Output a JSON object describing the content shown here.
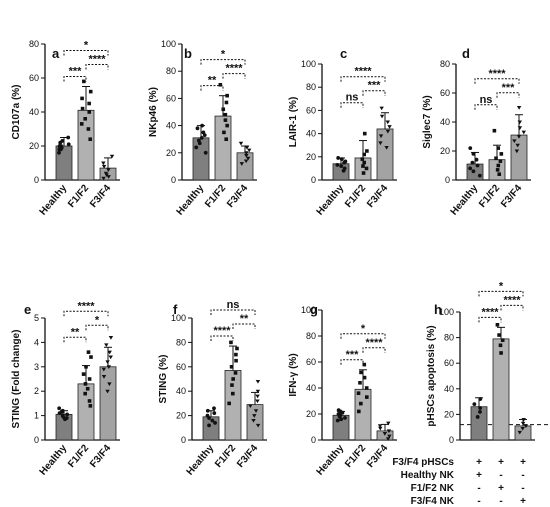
{
  "figure_colors": {
    "bar_fills": [
      "#7f7f7f",
      "#b1b1b1",
      "#a3a3a3"
    ],
    "stroke": "#222222",
    "point": "#111111"
  },
  "chart_data": [
    {
      "type": "bar",
      "panel": "a",
      "ylabel": "CD107a (%)",
      "ylim": [
        0,
        80
      ],
      "yticks": [
        0,
        20,
        40,
        60,
        80
      ],
      "categories": [
        "Healthy",
        "F1/F2",
        "F3/F4"
      ],
      "values": [
        20,
        41,
        7
      ],
      "errors": [
        5,
        14,
        6
      ],
      "points": [
        [
          16,
          18,
          18,
          19,
          20,
          20,
          21,
          22,
          23,
          25
        ],
        [
          24,
          30,
          33,
          36,
          40,
          42,
          45,
          48,
          52,
          58
        ],
        [
          1,
          2,
          3,
          4,
          6,
          8,
          10,
          14
        ]
      ],
      "comparisons": [
        {
          "from": 0,
          "to": 1,
          "label": "***"
        },
        {
          "from": 1,
          "to": 2,
          "label": "****"
        },
        {
          "from": 0,
          "to": 2,
          "label": "*"
        }
      ]
    },
    {
      "type": "bar",
      "panel": "b",
      "ylabel": "NKp46 (%)",
      "ylim": [
        0,
        100
      ],
      "yticks": [
        0,
        20,
        40,
        60,
        80,
        100
      ],
      "categories": [
        "Healthy",
        "F1/F2",
        "F3/F4"
      ],
      "values": [
        31,
        47,
        20
      ],
      "errors": [
        9,
        15,
        5
      ],
      "points": [
        [
          20,
          24,
          27,
          29,
          31,
          33,
          35,
          38,
          40
        ],
        [
          30,
          35,
          40,
          44,
          48,
          52,
          57,
          62,
          70
        ],
        [
          12,
          14,
          16,
          18,
          20,
          22,
          24,
          27
        ]
      ],
      "comparisons": [
        {
          "from": 0,
          "to": 1,
          "label": "**"
        },
        {
          "from": 1,
          "to": 2,
          "label": "****"
        },
        {
          "from": 0,
          "to": 2,
          "label": "*"
        }
      ]
    },
    {
      "type": "bar",
      "panel": "c",
      "ylabel": "LAIR-1 (%)",
      "ylim": [
        0,
        100
      ],
      "yticks": [
        0,
        20,
        40,
        60,
        80,
        100
      ],
      "categories": [
        "Healthy",
        "F1/F2",
        "F3/F4"
      ],
      "values": [
        14,
        19,
        44
      ],
      "errors": [
        5,
        15,
        14
      ],
      "points": [
        [
          8,
          10,
          12,
          13,
          15,
          16,
          18,
          19
        ],
        [
          6,
          10,
          12,
          15,
          18,
          22,
          25,
          40
        ],
        [
          28,
          32,
          38,
          42,
          46,
          50,
          55,
          62
        ]
      ],
      "comparisons": [
        {
          "from": 0,
          "to": 1,
          "label": "ns"
        },
        {
          "from": 1,
          "to": 2,
          "label": "***"
        },
        {
          "from": 0,
          "to": 2,
          "label": "****"
        }
      ]
    },
    {
      "type": "bar",
      "panel": "d",
      "ylabel": "Siglec7 (%)",
      "ylim": [
        0,
        80
      ],
      "yticks": [
        0,
        20,
        40,
        60,
        80
      ],
      "categories": [
        "Healthy",
        "F1/F2",
        "F3/F4"
      ],
      "values": [
        11,
        14,
        31
      ],
      "errors": [
        8,
        10,
        14
      ],
      "points": [
        [
          3,
          6,
          8,
          10,
          12,
          14,
          18,
          22
        ],
        [
          4,
          7,
          10,
          13,
          15,
          18,
          22,
          34
        ],
        [
          20,
          24,
          27,
          30,
          33,
          36,
          40,
          50
        ]
      ],
      "comparisons": [
        {
          "from": 0,
          "to": 1,
          "label": "ns"
        },
        {
          "from": 1,
          "to": 2,
          "label": "***"
        },
        {
          "from": 0,
          "to": 2,
          "label": "****"
        }
      ]
    },
    {
      "type": "bar",
      "panel": "e",
      "ylabel": "STING (Fold change)",
      "ylim": [
        0,
        5
      ],
      "yticks": [
        0,
        1,
        2,
        3,
        4,
        5
      ],
      "categories": [
        "Healthy",
        "F1/F2",
        "F3/F4"
      ],
      "values": [
        1.05,
        2.3,
        3.0
      ],
      "errors": [
        0.15,
        0.75,
        0.8
      ],
      "points": [
        [
          0.85,
          0.9,
          0.95,
          1.0,
          1.05,
          1.1,
          1.15,
          1.2,
          1.3
        ],
        [
          1.4,
          1.6,
          1.9,
          2.1,
          2.3,
          2.5,
          2.7,
          3.0,
          3.4,
          3.6
        ],
        [
          2.0,
          2.3,
          2.6,
          2.9,
          3.0,
          3.2,
          3.4,
          3.6,
          3.9,
          4.2
        ]
      ],
      "comparisons": [
        {
          "from": 0,
          "to": 1,
          "label": "**"
        },
        {
          "from": 1,
          "to": 2,
          "label": "*"
        },
        {
          "from": 0,
          "to": 2,
          "label": "****"
        }
      ]
    },
    {
      "type": "bar",
      "panel": "f",
      "ylabel": "STING (%)",
      "ylim": [
        0,
        100
      ],
      "yticks": [
        0,
        20,
        40,
        60,
        80,
        100
      ],
      "categories": [
        "Healthy",
        "F1/F2",
        "F3/F4"
      ],
      "values": [
        19,
        57,
        29
      ],
      "errors": [
        5,
        20,
        10
      ],
      "points": [
        [
          12,
          14,
          16,
          18,
          20,
          22,
          24,
          26
        ],
        [
          30,
          38,
          45,
          50,
          55,
          60,
          65,
          70,
          75,
          80
        ],
        [
          12,
          16,
          20,
          24,
          28,
          32,
          36,
          40,
          48
        ]
      ],
      "comparisons": [
        {
          "from": 0,
          "to": 1,
          "label": "****"
        },
        {
          "from": 1,
          "to": 2,
          "label": "**"
        },
        {
          "from": 0,
          "to": 2,
          "label": "ns"
        }
      ]
    },
    {
      "type": "bar",
      "panel": "g",
      "ylabel": "IFN-γ (%)",
      "ylim": [
        0,
        100
      ],
      "yticks": [
        0,
        20,
        40,
        60,
        80,
        100
      ],
      "categories": [
        "Healthy",
        "F1/F2",
        "F3/F4"
      ],
      "values": [
        19,
        39,
        7
      ],
      "errors": [
        3,
        15,
        5
      ],
      "points": [
        [
          15,
          16,
          17,
          18,
          19,
          20,
          21,
          22,
          23
        ],
        [
          22,
          28,
          33,
          36,
          40,
          44,
          48,
          52,
          58
        ],
        [
          1,
          3,
          5,
          7,
          9,
          11,
          13
        ]
      ],
      "comparisons": [
        {
          "from": 0,
          "to": 1,
          "label": "***"
        },
        {
          "from": 1,
          "to": 2,
          "label": "****"
        },
        {
          "from": 0,
          "to": 2,
          "label": "*"
        }
      ]
    },
    {
      "type": "bar",
      "panel": "h",
      "ylabel": "pHSCs apoptosis (%)",
      "ylim": [
        0,
        100
      ],
      "yticks": [
        0,
        20,
        40,
        60,
        80,
        100
      ],
      "categories": [
        "",
        "",
        ""
      ],
      "values": [
        26,
        79,
        11
      ],
      "errors": [
        7,
        9,
        5
      ],
      "points": [
        [
          18,
          22,
          25,
          28,
          32
        ],
        [
          68,
          74,
          78,
          82,
          90
        ],
        [
          6,
          9,
          11,
          13,
          16
        ]
      ],
      "baseline": 12,
      "comparisons": [
        {
          "from": 0,
          "to": 1,
          "label": "****"
        },
        {
          "from": 1,
          "to": 2,
          "label": "****"
        },
        {
          "from": 0,
          "to": 2,
          "label": "*"
        }
      ],
      "treatment_table": [
        {
          "label": "F3/F4 pHSCs",
          "marks": [
            "+",
            "+",
            "+"
          ]
        },
        {
          "label": "Healthy NK",
          "marks": [
            "+",
            "-",
            "-"
          ]
        },
        {
          "label": "F1/F2 NK",
          "marks": [
            "-",
            "+",
            "-"
          ]
        },
        {
          "label": "F3/F4 NK",
          "marks": [
            "-",
            "-",
            "+"
          ]
        }
      ]
    }
  ]
}
